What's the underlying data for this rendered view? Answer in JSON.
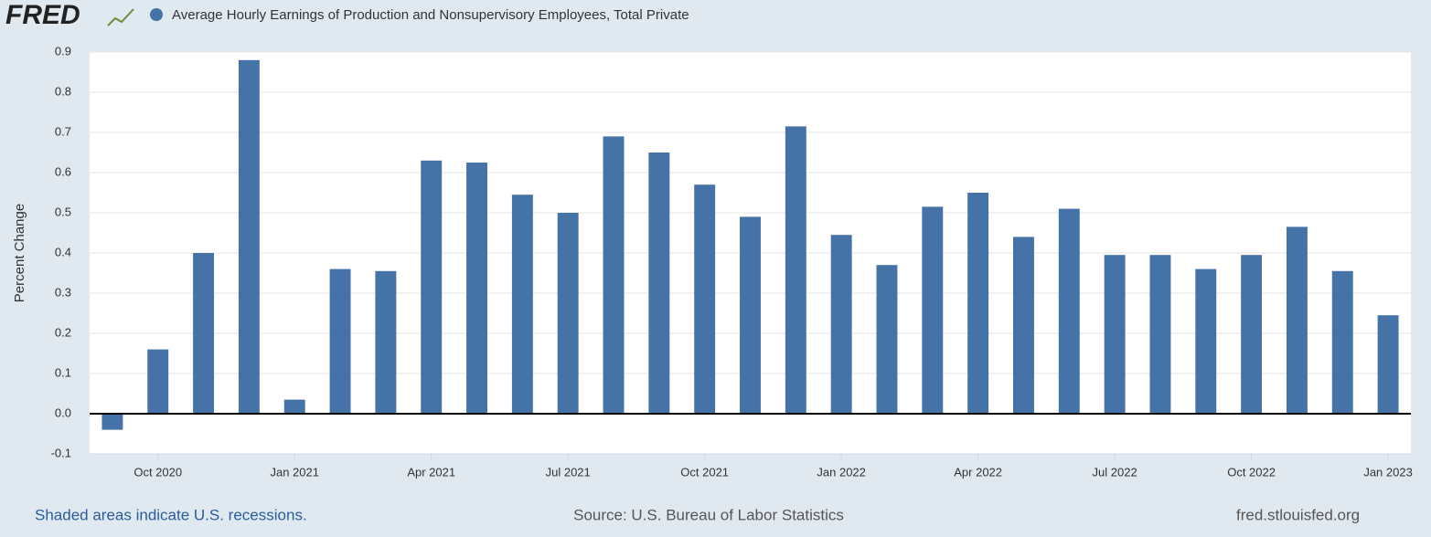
{
  "logo": "FRED",
  "chart_data": {
    "type": "bar",
    "y_label": "Percent Change",
    "categories": [
      null,
      "Oct 2020",
      null,
      null,
      "Jan 2021",
      null,
      null,
      "Apr 2021",
      null,
      null,
      "Jul 2021",
      null,
      null,
      "Oct 2021",
      null,
      null,
      "Jan 2022",
      null,
      null,
      "Apr 2022",
      null,
      null,
      "Jul 2022",
      null,
      null,
      "Oct 2022",
      null,
      null,
      "Jan 2023"
    ],
    "series": [
      {
        "name": "Average Hourly Earnings of Production and Nonsupervisory Employees, Total Private",
        "color": "#4572a7",
        "values": [
          -0.04,
          0.16,
          0.4,
          0.88,
          0.035,
          0.36,
          0.355,
          0.63,
          0.625,
          0.545,
          0.5,
          0.69,
          0.65,
          0.57,
          0.49,
          0.715,
          0.445,
          0.37,
          0.515,
          0.55,
          0.44,
          0.51,
          0.395,
          0.395,
          0.36,
          0.395,
          0.465,
          0.355,
          0.245
        ]
      }
    ],
    "ylim": [
      -0.1,
      0.9
    ],
    "yticks": [
      -0.1,
      {
        "value": 0,
        "label": "0.0"
      },
      0.1,
      0.2,
      0.3,
      0.4,
      0.5,
      0.6,
      0.7,
      0.8,
      0.9
    ],
    "grid": true
  },
  "footer": {
    "recessions": "Shaded areas indicate U.S. recessions.",
    "source": "Source: U.S. Bureau of Labor Statistics",
    "site": "fred.stlouisfed.org"
  }
}
